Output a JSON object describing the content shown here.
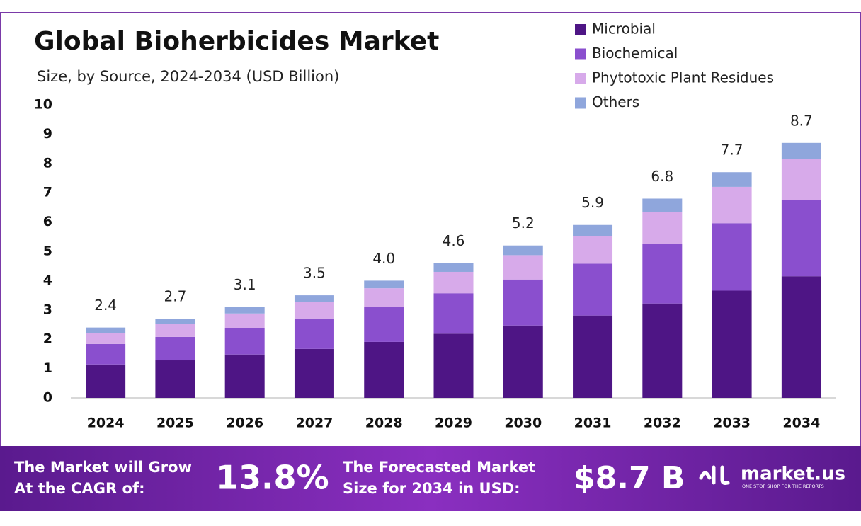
{
  "chart_data": {
    "type": "stacked_bar",
    "title": "Global Bioherbicides Market",
    "subtitle": "Size, by Source, 2024-2034 (USD Billion)",
    "categories": [
      "2024",
      "2025",
      "2026",
      "2027",
      "2028",
      "2029",
      "2030",
      "2031",
      "2032",
      "2033",
      "2034"
    ],
    "series": [
      {
        "name": "Microbial",
        "color": "#4e1585",
        "values": [
          1.14,
          1.28,
          1.48,
          1.67,
          1.91,
          2.19,
          2.47,
          2.81,
          3.22,
          3.66,
          4.15
        ]
      },
      {
        "name": "Biochemical",
        "color": "#8a4fce",
        "values": [
          0.7,
          0.8,
          0.9,
          1.04,
          1.19,
          1.38,
          1.57,
          1.77,
          2.03,
          2.3,
          2.61
        ]
      },
      {
        "name": "Phytotoxic Plant Residues",
        "color": "#d7aaea",
        "values": [
          0.38,
          0.44,
          0.5,
          0.56,
          0.64,
          0.73,
          0.83,
          0.94,
          1.1,
          1.24,
          1.4
        ]
      },
      {
        "name": "Others",
        "color": "#8fa6dc",
        "values": [
          0.18,
          0.18,
          0.22,
          0.23,
          0.26,
          0.3,
          0.33,
          0.38,
          0.45,
          0.5,
          0.54
        ]
      }
    ],
    "totals": [
      2.4,
      2.7,
      3.1,
      3.5,
      4.0,
      4.6,
      5.2,
      5.9,
      6.8,
      7.7,
      8.7
    ],
    "value_labels": [
      "2.4",
      "2.7",
      "3.1",
      "3.5",
      "4.0",
      "4.6",
      "5.2",
      "5.9",
      "6.8",
      "7.7",
      "8.7"
    ],
    "ylim": [
      0,
      10
    ],
    "yticks": [
      0,
      1,
      2,
      3,
      4,
      5,
      6,
      7,
      8,
      9,
      10
    ],
    "legend": "top-right"
  },
  "footer": {
    "cagr_text": [
      "The Market will Grow",
      "At the CAGR of:"
    ],
    "cagr_value": "13.8%",
    "forecast_text": [
      "The Forecasted Market",
      "Size for 2034 in USD:"
    ],
    "forecast_value": "$8.7 B",
    "brand": "market.us",
    "tagline": "ONE STOP SHOP FOR THE REPORTS"
  }
}
